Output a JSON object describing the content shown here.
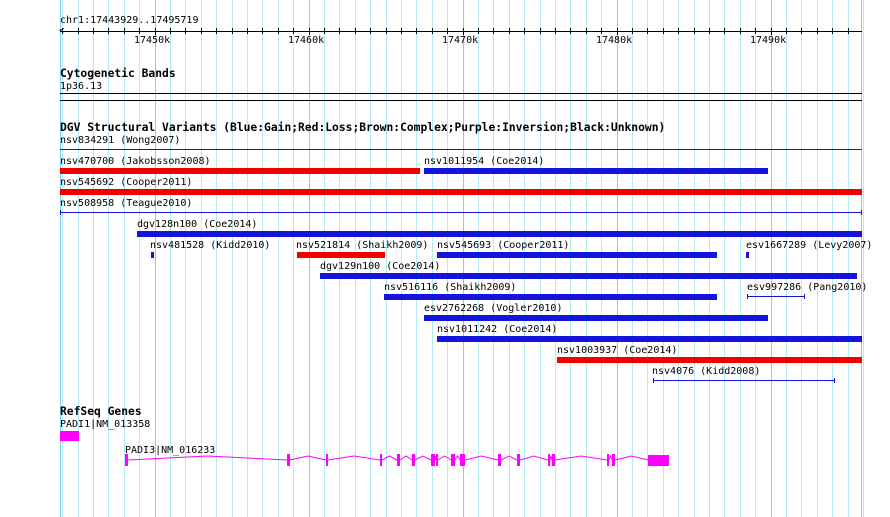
{
  "ruler": {
    "location": "chr1:17443929..17495719",
    "ticks": [
      "17450k",
      "17460k",
      "17470k",
      "17480k",
      "17490k"
    ]
  },
  "cytobands": {
    "title": "Cytogenetic Bands",
    "band": "1p36.13"
  },
  "dgv": {
    "title": "DGV Structural Variants (Blue:Gain;Red:Loss;Brown:Complex;Purple:Inversion;Black:Unknown)",
    "features": [
      {
        "label": "nsv834291 (Wong2007)",
        "type": "gain"
      },
      {
        "label": "nsv470700 (Jakobsson2008)",
        "type": "loss"
      },
      {
        "label": "nsv1011954 (Coe2014)",
        "type": "gain"
      },
      {
        "label": "nsv545692 (Cooper2011)",
        "type": "loss"
      },
      {
        "label": "nsv508958 (Teague2010)",
        "type": "gain"
      },
      {
        "label": "dgv128n100 (Coe2014)",
        "type": "gain"
      },
      {
        "label": "nsv481528 (Kidd2010)",
        "type": "gain"
      },
      {
        "label": "nsv521814 (Shaikh2009)",
        "type": "loss"
      },
      {
        "label": "nsv545693 (Cooper2011)",
        "type": "gain"
      },
      {
        "label": "esv1667289 (Levy2007)",
        "type": "gain"
      },
      {
        "label": "dgv129n100 (Coe2014)",
        "type": "gain"
      },
      {
        "label": "nsv516116 (Shaikh2009)",
        "type": "gain"
      },
      {
        "label": "esv997286 (Pang2010)",
        "type": "gain"
      },
      {
        "label": "esv2762268 (Vogler2010)",
        "type": "gain"
      },
      {
        "label": "nsv1011242 (Coe2014)",
        "type": "gain"
      },
      {
        "label": "nsv1003937 (Coe2014)",
        "type": "loss"
      },
      {
        "label": "nsv4076 (Kidd2008)",
        "type": "gain"
      }
    ]
  },
  "refseq": {
    "title": "RefSeq Genes",
    "genes": [
      {
        "label": "PADI1|NM_013358"
      },
      {
        "label": "PADI3|NM_016233"
      }
    ]
  },
  "colors": {
    "gain": "#1414dc",
    "loss": "#f00000",
    "gene": "#ff00ff",
    "grid_minor": "#b4eaf2",
    "grid_major": "#8ccbe6"
  }
}
